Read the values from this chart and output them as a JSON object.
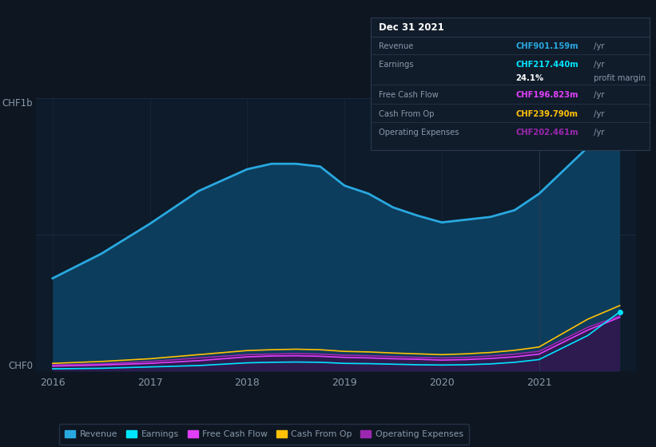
{
  "background_color": "#0e1621",
  "plot_bg_color": "#0d1b2a",
  "title": "Dec 31 2021",
  "years": [
    2016,
    2016.5,
    2017,
    2017.5,
    2018,
    2018.25,
    2018.5,
    2018.75,
    2019,
    2019.25,
    2019.5,
    2019.75,
    2020,
    2020.25,
    2020.5,
    2020.75,
    2021,
    2021.5,
    2021.83
  ],
  "revenue": [
    340,
    430,
    540,
    660,
    740,
    760,
    760,
    750,
    680,
    650,
    600,
    570,
    545,
    555,
    565,
    590,
    650,
    820,
    901
  ],
  "earnings": [
    8,
    10,
    15,
    20,
    30,
    32,
    33,
    32,
    28,
    27,
    25,
    23,
    22,
    23,
    26,
    32,
    42,
    130,
    217
  ],
  "free_cash_flow": [
    18,
    22,
    28,
    38,
    52,
    55,
    56,
    54,
    50,
    48,
    45,
    43,
    40,
    42,
    46,
    52,
    62,
    150,
    197
  ],
  "cash_from_op": [
    28,
    35,
    45,
    60,
    75,
    78,
    80,
    78,
    72,
    70,
    66,
    63,
    60,
    63,
    68,
    76,
    88,
    190,
    240
  ],
  "operating_expenses": [
    22,
    26,
    35,
    48,
    60,
    62,
    64,
    62,
    58,
    56,
    53,
    50,
    48,
    50,
    55,
    62,
    72,
    160,
    202
  ],
  "revenue_color": "#29a8e0",
  "earnings_color": "#00e5ff",
  "free_cash_flow_color": "#e040fb",
  "cash_from_op_color": "#ffc107",
  "operating_expenses_color": "#9c27b0",
  "revenue_fill": "#0d3d5c",
  "opex_fill": "#2d1b50",
  "grid_color": "#1a2940",
  "text_color": "#8899aa",
  "legend_bg": "#0e1621",
  "legend_border": "#2a3a4e",
  "tooltip_bg": "#111c2b",
  "tooltip_border": "#2a3a4e",
  "xmin": 2015.83,
  "xmax": 2022.0,
  "ymin": 0,
  "ymax": 1000,
  "xticks": [
    2016,
    2017,
    2018,
    2019,
    2020,
    2021
  ],
  "legend_items": [
    {
      "label": "Revenue",
      "color": "#29a8e0"
    },
    {
      "label": "Earnings",
      "color": "#00e5ff"
    },
    {
      "label": "Free Cash Flow",
      "color": "#e040fb"
    },
    {
      "label": "Cash From Op",
      "color": "#ffc107"
    },
    {
      "label": "Operating Expenses",
      "color": "#9c27b0"
    }
  ],
  "tooltip_title": "Dec 31 2021",
  "tooltip_rows": [
    {
      "label": "Revenue",
      "value": "CHF901.159m",
      "suffix": " /yr",
      "color": "#29a8e0",
      "divider_above": true
    },
    {
      "label": "Earnings",
      "value": "CHF217.440m",
      "suffix": " /yr",
      "color": "#00e5ff",
      "divider_above": true
    },
    {
      "label": "",
      "value": "24.1%",
      "suffix": " profit margin",
      "color": "#ffffff",
      "divider_above": false
    },
    {
      "label": "Free Cash Flow",
      "value": "CHF196.823m",
      "suffix": " /yr",
      "color": "#e040fb",
      "divider_above": true
    },
    {
      "label": "Cash From Op",
      "value": "CHF239.790m",
      "suffix": " /yr",
      "color": "#ffc107",
      "divider_above": true
    },
    {
      "label": "Operating Expenses",
      "value": "CHF202.461m",
      "suffix": " /yr",
      "color": "#9c27b0",
      "divider_above": true
    }
  ]
}
